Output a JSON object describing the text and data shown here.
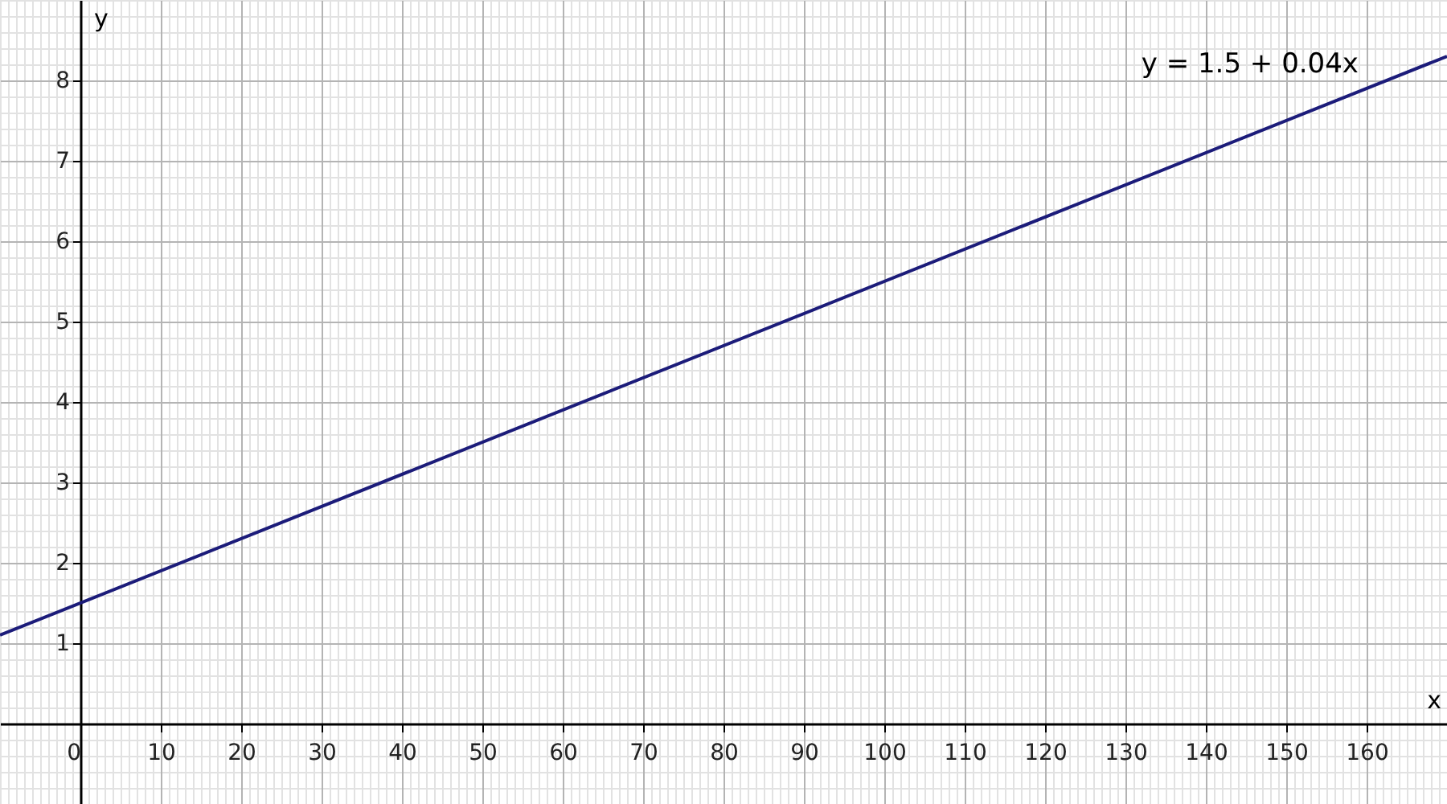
{
  "chart_data": {
    "type": "line",
    "xlabel": "x",
    "ylabel": "y",
    "x": [
      -10,
      170
    ],
    "series": [
      {
        "name": "y = 1.5 + 0.04x",
        "color": "#1c1c7a",
        "values": [
          1.1,
          8.3
        ]
      }
    ],
    "xlim": [
      -10,
      170
    ],
    "ylim": [
      -1,
      9
    ],
    "xticks": [
      0,
      10,
      20,
      30,
      40,
      50,
      60,
      70,
      80,
      90,
      100,
      110,
      120,
      130,
      140,
      150,
      160
    ],
    "yticks": [
      1,
      2,
      3,
      4,
      5,
      6,
      7,
      8
    ],
    "grid": true
  }
}
